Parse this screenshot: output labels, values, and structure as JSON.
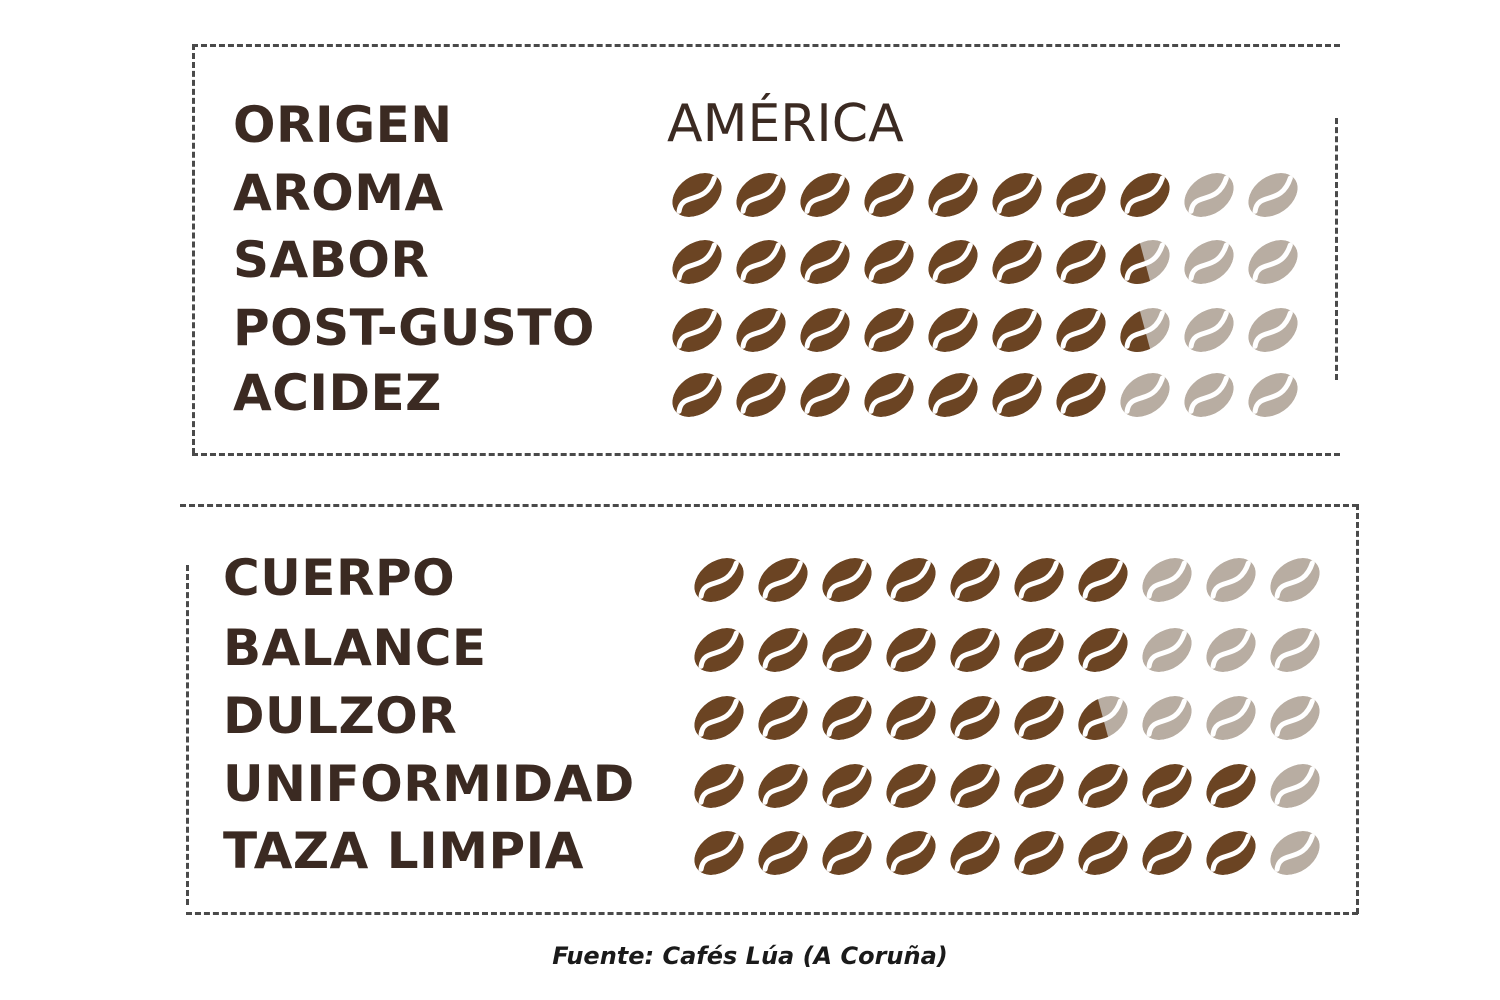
{
  "source_note": "Fuente: Cafés Lúa (A Coruña)",
  "origin": {
    "label": "ORIGEN",
    "value": "AMÉRICA"
  },
  "colors": {
    "bean_filled": "#6b4423",
    "bean_empty": "#b8ada2",
    "text": "#3b2a22"
  },
  "chart_data": {
    "type": "table",
    "scale_max": 10,
    "sections": [
      {
        "rows": [
          {
            "label": "AROMA",
            "value": 8
          },
          {
            "label": "SABOR",
            "value": 7.5
          },
          {
            "label": "POST-GUSTO",
            "value": 7.5
          },
          {
            "label": "ACIDEZ",
            "value": 7
          }
        ]
      },
      {
        "rows": [
          {
            "label": "CUERPO",
            "value": 7
          },
          {
            "label": "BALANCE",
            "value": 7
          },
          {
            "label": "DULZOR",
            "value": 6.5
          },
          {
            "label": "UNIFORMIDAD",
            "value": 9
          },
          {
            "label": "TAZA LIMPIA",
            "value": 9
          }
        ]
      }
    ]
  }
}
